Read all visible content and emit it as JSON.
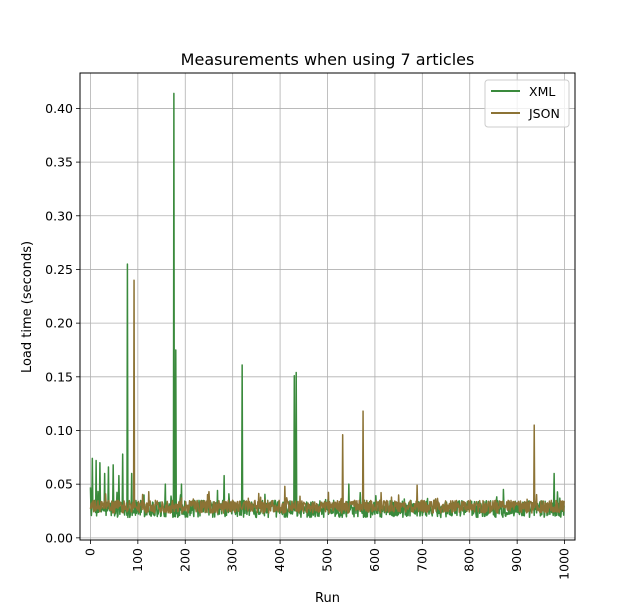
{
  "chart_data": {
    "type": "line",
    "title": "Measurements when using 7 articles",
    "xlabel": "Run",
    "ylabel": "Load time (seconds)",
    "xlim": [
      -22,
      1022
    ],
    "ylim": [
      -0.002,
      0.433
    ],
    "xticks": [
      0,
      100,
      200,
      300,
      400,
      500,
      600,
      700,
      800,
      900,
      1000
    ],
    "yticks": [
      0.0,
      0.05,
      0.1,
      0.15,
      0.2,
      0.25,
      0.3,
      0.35,
      0.4
    ],
    "ytick_labels": [
      "0.00",
      "0.05",
      "0.10",
      "0.15",
      "0.20",
      "0.25",
      "0.30",
      "0.35",
      "0.40"
    ],
    "grid": true,
    "legend_position": "top-right",
    "series": [
      {
        "name": "XML",
        "color": "#3a8a3c",
        "baseline": 0.027,
        "noise": 0.008,
        "spikes": [
          {
            "x": 0,
            "y": 0.047
          },
          {
            "x": 4,
            "y": 0.074
          },
          {
            "x": 12,
            "y": 0.072
          },
          {
            "x": 20,
            "y": 0.07
          },
          {
            "x": 30,
            "y": 0.06
          },
          {
            "x": 38,
            "y": 0.066
          },
          {
            "x": 48,
            "y": 0.068
          },
          {
            "x": 60,
            "y": 0.058
          },
          {
            "x": 68,
            "y": 0.078
          },
          {
            "x": 78,
            "y": 0.255
          },
          {
            "x": 87,
            "y": 0.06
          },
          {
            "x": 158,
            "y": 0.05
          },
          {
            "x": 176,
            "y": 0.414
          },
          {
            "x": 180,
            "y": 0.175
          },
          {
            "x": 192,
            "y": 0.05
          },
          {
            "x": 282,
            "y": 0.058
          },
          {
            "x": 320,
            "y": 0.161
          },
          {
            "x": 430,
            "y": 0.151
          },
          {
            "x": 434,
            "y": 0.154
          },
          {
            "x": 545,
            "y": 0.05
          },
          {
            "x": 871,
            "y": 0.045
          },
          {
            "x": 978,
            "y": 0.06
          },
          {
            "x": 990,
            "y": 0.037
          }
        ]
      },
      {
        "name": "JSON",
        "color": "#8c7335",
        "baseline": 0.029,
        "noise": 0.006,
        "spikes": [
          {
            "x": 92,
            "y": 0.24
          },
          {
            "x": 123,
            "y": 0.043
          },
          {
            "x": 250,
            "y": 0.043
          },
          {
            "x": 410,
            "y": 0.048
          },
          {
            "x": 532,
            "y": 0.096
          },
          {
            "x": 575,
            "y": 0.118
          },
          {
            "x": 689,
            "y": 0.049
          },
          {
            "x": 936,
            "y": 0.105
          }
        ]
      }
    ],
    "n_points": 1000
  }
}
